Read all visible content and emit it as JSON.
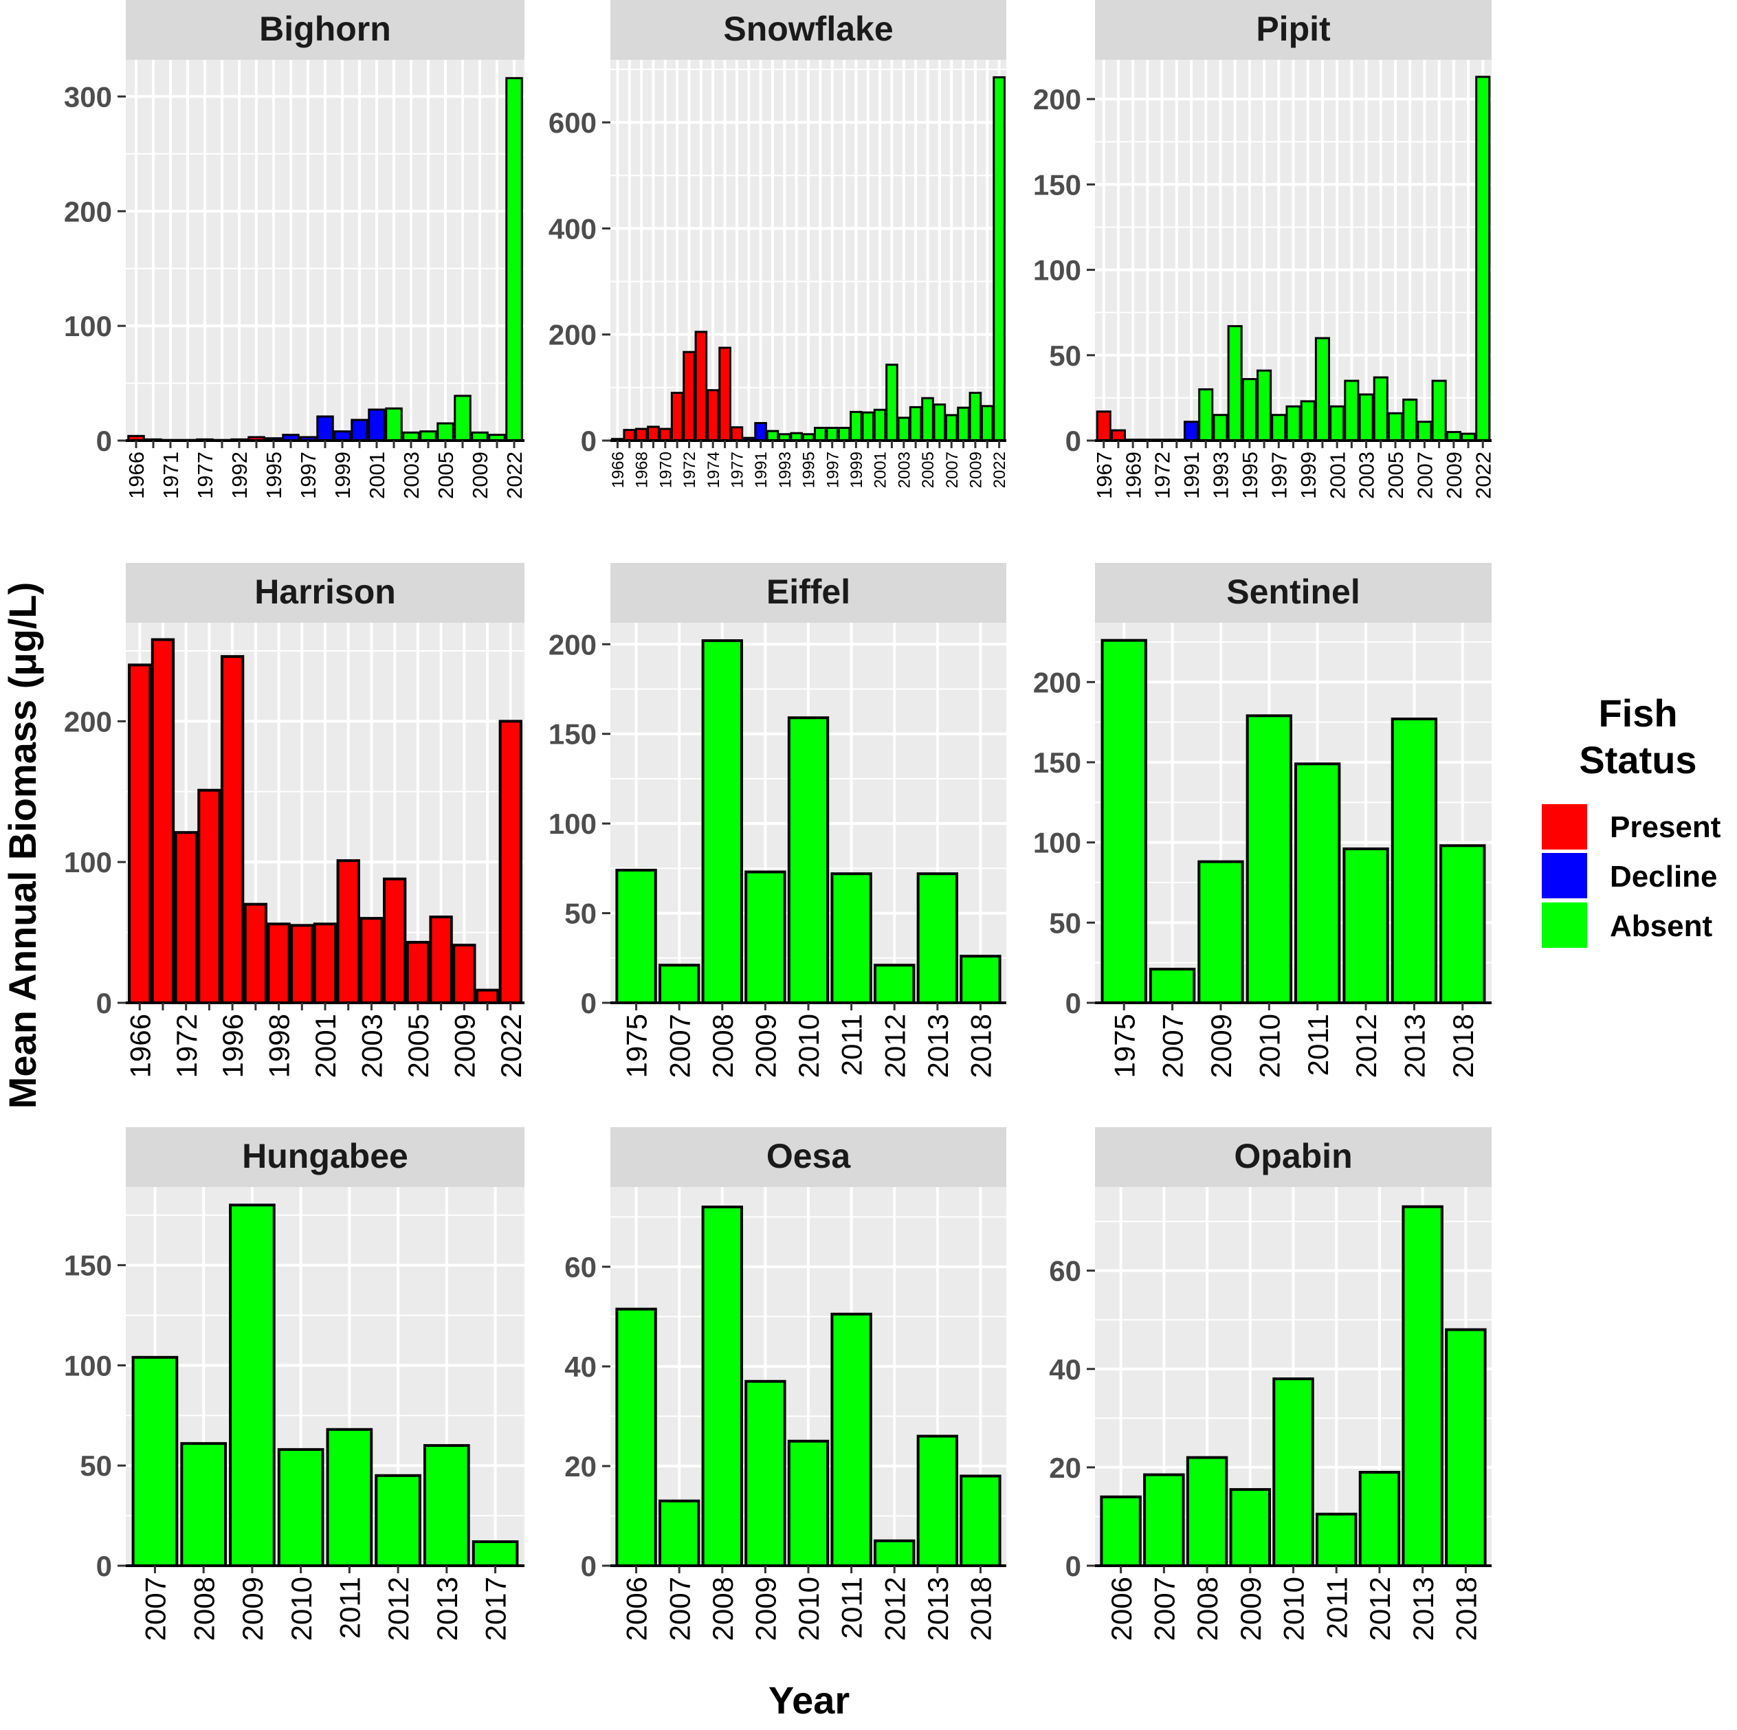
{
  "figure": {
    "ylabel": "Mean Annual Biomass (μg/L)",
    "xlabel": "Year",
    "legend": {
      "title_lines": [
        "Fish",
        "Status"
      ],
      "placement": "right",
      "items": [
        {
          "label": "Present",
          "color": "#ff0000"
        },
        {
          "label": "Decline",
          "color": "#0000ff"
        },
        {
          "label": "Absent",
          "color": "#00ff00"
        }
      ]
    },
    "colors": {
      "panel_bg": "#ebebeb",
      "strip_bg": "#d9d9d9",
      "grid": "#ffffff",
      "bar_outline": "#000000"
    }
  },
  "chart_data": [
    {
      "type": "bar",
      "title": "Bighorn",
      "categories": [
        "1966",
        "1968",
        "1971",
        "1975",
        "1977",
        "1990",
        "1992",
        "1994",
        "1995",
        "1996",
        "1997",
        "1998",
        "1999",
        "2000",
        "2001",
        "2002",
        "2003",
        "2004",
        "2005",
        "2007",
        "2009",
        "2011",
        "2022"
      ],
      "tick_labels": [
        "1966",
        "1971",
        "1977",
        "1992",
        "1995",
        "1997",
        "1999",
        "2001",
        "2003",
        "2005",
        "2009",
        "2022"
      ],
      "values": [
        4,
        1,
        0.5,
        0.5,
        1,
        0.5,
        1,
        3,
        2,
        5,
        3,
        21,
        8,
        18,
        27,
        28,
        7,
        8,
        15,
        39,
        7,
        5,
        316
      ],
      "status": [
        "Present",
        "Present",
        "Present",
        "Present",
        "Present",
        "Present",
        "Present",
        "Present",
        "Present",
        "Decline",
        "Decline",
        "Decline",
        "Decline",
        "Decline",
        "Decline",
        "Absent",
        "Absent",
        "Absent",
        "Absent",
        "Absent",
        "Absent",
        "Absent",
        "Absent"
      ],
      "ylim": [
        0,
        332
      ],
      "yticks": [
        0,
        100,
        200,
        300
      ],
      "grid": true
    },
    {
      "type": "bar",
      "title": "Snowflake",
      "categories": [
        "1966",
        "1967",
        "1968",
        "1969",
        "1970",
        "1971",
        "1972",
        "1973",
        "1974",
        "1975",
        "1977",
        "1990",
        "1991",
        "1992",
        "1993",
        "1994",
        "1995",
        "1996",
        "1997",
        "1998",
        "1999",
        "2000",
        "2001",
        "2002",
        "2003",
        "2004",
        "2005",
        "2006",
        "2007",
        "2008",
        "2009",
        "2011",
        "2022"
      ],
      "tick_labels": [
        "1966",
        "1968",
        "1970",
        "1972",
        "1974",
        "1977",
        "1991",
        "1993",
        "1995",
        "1997",
        "1999",
        "2001",
        "2003",
        "2005",
        "2007",
        "2009",
        "2022"
      ],
      "values": [
        3,
        20,
        22,
        26,
        22,
        90,
        167,
        205,
        95,
        175,
        25,
        5,
        33,
        18,
        12,
        14,
        12,
        24,
        24,
        24,
        54,
        53,
        58,
        143,
        43,
        63,
        80,
        68,
        48,
        62,
        90,
        65,
        685
      ],
      "status": [
        "Present",
        "Present",
        "Present",
        "Present",
        "Present",
        "Present",
        "Present",
        "Present",
        "Present",
        "Present",
        "Present",
        "Decline",
        "Decline",
        "Absent",
        "Absent",
        "Absent",
        "Absent",
        "Absent",
        "Absent",
        "Absent",
        "Absent",
        "Absent",
        "Absent",
        "Absent",
        "Absent",
        "Absent",
        "Absent",
        "Absent",
        "Absent",
        "Absent",
        "Absent",
        "Absent",
        "Absent"
      ],
      "ylim": [
        0,
        718
      ],
      "yticks": [
        0,
        200,
        400,
        600
      ],
      "grid": true
    },
    {
      "type": "bar",
      "title": "Pipit",
      "categories": [
        "1967",
        "1968",
        "1969",
        "1970",
        "1972",
        "1973",
        "1991",
        "1992",
        "1993",
        "1994",
        "1995",
        "1996",
        "1997",
        "1998",
        "1999",
        "2000",
        "2001",
        "2002",
        "2003",
        "2004",
        "2005",
        "2006",
        "2007",
        "2008",
        "2009",
        "2011",
        "2022"
      ],
      "tick_labels": [
        "1967",
        "1969",
        "1972",
        "1991",
        "1993",
        "1995",
        "1997",
        "1999",
        "2001",
        "2003",
        "2005",
        "2007",
        "2009",
        "2022"
      ],
      "values": [
        17,
        6,
        0.5,
        0.5,
        0.5,
        0.5,
        11,
        30,
        15,
        67,
        36,
        41,
        15,
        20,
        23,
        60,
        20,
        35,
        27,
        37,
        16,
        24,
        11,
        35,
        5,
        4,
        213
      ],
      "status": [
        "Present",
        "Present",
        "Present",
        "Present",
        "Present",
        "Present",
        "Decline",
        "Absent",
        "Absent",
        "Absent",
        "Absent",
        "Absent",
        "Absent",
        "Absent",
        "Absent",
        "Absent",
        "Absent",
        "Absent",
        "Absent",
        "Absent",
        "Absent",
        "Absent",
        "Absent",
        "Absent",
        "Absent",
        "Absent",
        "Absent"
      ],
      "ylim": [
        0,
        223
      ],
      "yticks": [
        0,
        50,
        100,
        150,
        200
      ],
      "grid": true
    },
    {
      "type": "bar",
      "title": "Harrison",
      "categories": [
        "1966",
        "1968",
        "1972",
        "1975",
        "1996",
        "1997",
        "1998",
        "2000",
        "2001",
        "2002",
        "2003",
        "2004",
        "2005",
        "2007",
        "2009",
        "2011",
        "2022"
      ],
      "tick_labels": [
        "1966",
        "1972",
        "1996",
        "1998",
        "2001",
        "2003",
        "2005",
        "2009",
        "2022"
      ],
      "values": [
        240,
        258,
        121,
        151,
        246,
        70,
        56,
        55,
        56,
        101,
        60,
        88,
        43,
        61,
        41,
        9,
        200
      ],
      "status": [
        "Present",
        "Present",
        "Present",
        "Present",
        "Present",
        "Present",
        "Present",
        "Present",
        "Present",
        "Present",
        "Present",
        "Present",
        "Present",
        "Present",
        "Present",
        "Present",
        "Present"
      ],
      "ylim": [
        0,
        270
      ],
      "yticks": [
        0,
        100,
        200
      ],
      "grid": true
    },
    {
      "type": "bar",
      "title": "Eiffel",
      "categories": [
        "1975",
        "2007",
        "2008",
        "2009",
        "2010",
        "2011",
        "2012",
        "2013",
        "2018"
      ],
      "tick_labels": [
        "1975",
        "2007",
        "2008",
        "2009",
        "2010",
        "2011",
        "2012",
        "2013",
        "2018"
      ],
      "values": [
        74,
        21,
        202,
        73,
        159,
        72,
        21,
        72,
        26
      ],
      "status": [
        "Absent",
        "Absent",
        "Absent",
        "Absent",
        "Absent",
        "Absent",
        "Absent",
        "Absent",
        "Absent"
      ],
      "ylim": [
        0,
        212
      ],
      "yticks": [
        0,
        50,
        100,
        150,
        200
      ],
      "grid": true
    },
    {
      "type": "bar",
      "title": "Sentinel",
      "categories": [
        "1975",
        "2007",
        "2009",
        "2010",
        "2011",
        "2012",
        "2013",
        "2018"
      ],
      "tick_labels": [
        "1975",
        "2007",
        "2009",
        "2010",
        "2011",
        "2012",
        "2013",
        "2018"
      ],
      "values": [
        226,
        21,
        88,
        179,
        149,
        96,
        177,
        98
      ],
      "status": [
        "Absent",
        "Absent",
        "Absent",
        "Absent",
        "Absent",
        "Absent",
        "Absent",
        "Absent"
      ],
      "ylim": [
        0,
        237
      ],
      "yticks": [
        0,
        50,
        100,
        150,
        200
      ],
      "grid": true
    },
    {
      "type": "bar",
      "title": "Hungabee",
      "categories": [
        "2007",
        "2008",
        "2009",
        "2010",
        "2011",
        "2012",
        "2013",
        "2017"
      ],
      "tick_labels": [
        "2007",
        "2008",
        "2009",
        "2010",
        "2011",
        "2012",
        "2013",
        "2017"
      ],
      "values": [
        104,
        61,
        180,
        58,
        68,
        45,
        60,
        12
      ],
      "status": [
        "Absent",
        "Absent",
        "Absent",
        "Absent",
        "Absent",
        "Absent",
        "Absent",
        "Absent"
      ],
      "ylim": [
        0,
        189
      ],
      "yticks": [
        0,
        50,
        100,
        150
      ],
      "grid": true
    },
    {
      "type": "bar",
      "title": "Oesa",
      "categories": [
        "2006",
        "2007",
        "2008",
        "2009",
        "2010",
        "2011",
        "2012",
        "2013",
        "2018"
      ],
      "tick_labels": [
        "2006",
        "2007",
        "2008",
        "2009",
        "2010",
        "2011",
        "2012",
        "2013",
        "2018"
      ],
      "values": [
        51.5,
        13,
        72,
        37,
        25,
        50.5,
        5,
        26,
        18
      ],
      "status": [
        "Absent",
        "Absent",
        "Absent",
        "Absent",
        "Absent",
        "Absent",
        "Absent",
        "Absent",
        "Absent"
      ],
      "ylim": [
        0,
        76
      ],
      "yticks": [
        0,
        20,
        40,
        60
      ],
      "grid": true
    },
    {
      "type": "bar",
      "title": "Opabin",
      "categories": [
        "2006",
        "2007",
        "2008",
        "2009",
        "2010",
        "2011",
        "2012",
        "2013",
        "2018"
      ],
      "tick_labels": [
        "2006",
        "2007",
        "2008",
        "2009",
        "2010",
        "2011",
        "2012",
        "2013",
        "2018"
      ],
      "values": [
        14,
        18.5,
        22,
        15.5,
        38,
        10.5,
        19,
        73,
        48
      ],
      "status": [
        "Absent",
        "Absent",
        "Absent",
        "Absent",
        "Absent",
        "Absent",
        "Absent",
        "Absent",
        "Absent"
      ],
      "ylim": [
        0,
        77
      ],
      "yticks": [
        0,
        20,
        40,
        60
      ],
      "grid": true
    }
  ]
}
